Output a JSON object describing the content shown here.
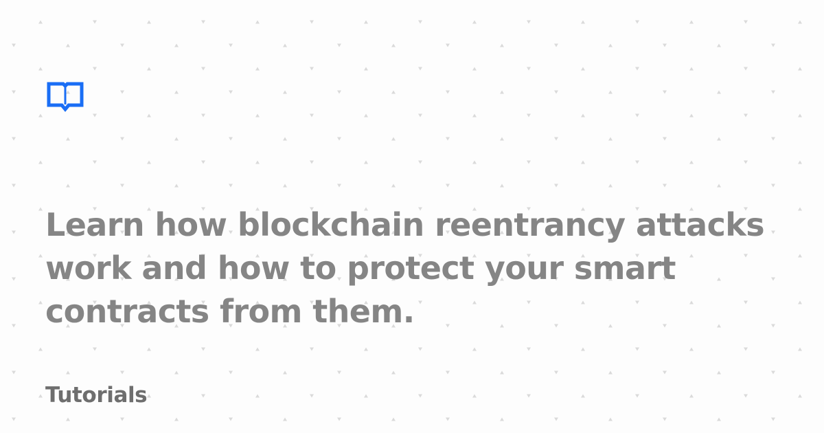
{
  "brand": {
    "logo_icon": "open-book-icon",
    "accent_color": "#1a6ef5"
  },
  "article": {
    "title_lines": [
      "Learn how blockchain reentrancy attacks",
      "work and how to protect your smart",
      "contracts from them."
    ],
    "category": "Tutorials"
  },
  "colors": {
    "background": "#fdfdfd",
    "title_text": "#858585",
    "category_text": "#6e6e6e",
    "pattern_marks": "#dadada"
  }
}
